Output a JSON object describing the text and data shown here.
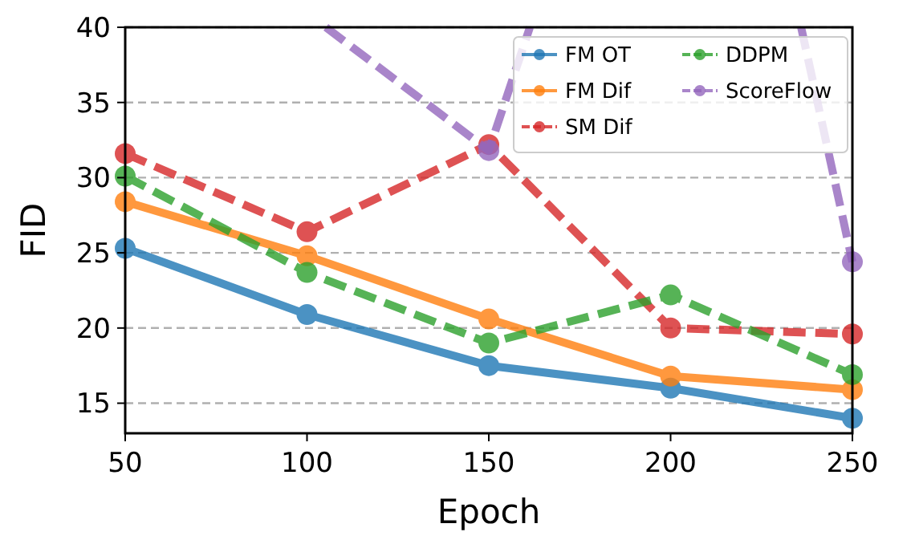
{
  "chart_data": {
    "type": "line",
    "xlabel": "Epoch",
    "ylabel": "FID",
    "x": [
      50,
      100,
      150,
      200,
      250
    ],
    "xlim": [
      50,
      250
    ],
    "xticks": [
      50,
      100,
      150,
      200,
      250
    ],
    "ylim": [
      13,
      40
    ],
    "yticks": [
      15,
      20,
      25,
      30,
      35,
      40
    ],
    "grid": "y",
    "legend": "top right",
    "marker": "circle",
    "series": [
      {
        "name": "FM OT",
        "color": "#1f77b4",
        "line_style": "solid",
        "values": [
          25.3,
          20.9,
          17.5,
          16.0,
          14.0
        ]
      },
      {
        "name": "FM Dif",
        "color": "#ff7f0e",
        "line_style": "solid",
        "values": [
          28.4,
          24.8,
          20.6,
          16.8,
          15.9
        ]
      },
      {
        "name": "SM Dif",
        "color": "#d62728",
        "line_style": "dashed",
        "values": [
          31.6,
          26.4,
          32.2,
          20.0,
          19.6
        ]
      },
      {
        "name": "DDPM",
        "color": "#2ca02c",
        "line_style": "dashed",
        "values": [
          30.1,
          23.7,
          19.0,
          22.2,
          16.9
        ]
      },
      {
        "color": "#9467bd",
        "line_style": "dashed",
        "marker": "none",
        "x": [
          105.2,
          150,
          161.3,
          null,
          235.9,
          250
        ],
        "values": [
          40,
          31.8,
          40,
          null,
          40,
          24.4
        ]
      },
      {
        "name": "ScoreFlow",
        "color": "#9467bd",
        "line_style": "dashed",
        "x": [
          150,
          200,
          250
        ],
        "values": [
          31.8,
          null,
          24.4
        ]
      }
    ]
  }
}
